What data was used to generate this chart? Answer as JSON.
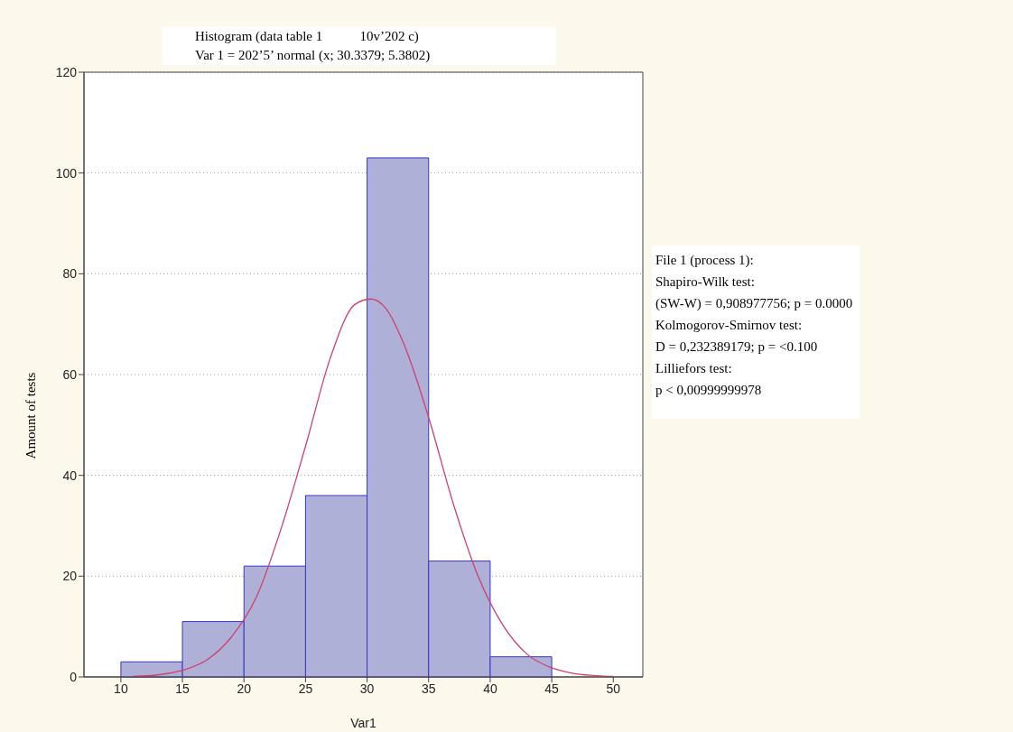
{
  "chart_data": {
    "type": "histogram",
    "title": "Histogram (data table 1           10v’202 c)",
    "subtitle": "Var 1 = 202’5’ normal (x; 30.3379; 5.3802)",
    "xlabel": "Var1",
    "ylabel": "Amount of tests",
    "bins": [
      10,
      15,
      20,
      25,
      30,
      35,
      40,
      45
    ],
    "values": [
      3,
      11,
      22,
      36,
      103,
      23,
      4
    ],
    "color": "#aeb0d8",
    "series": [
      {
        "type": "line",
        "color": "#d0406a",
        "x": [
          11,
          13,
          15,
          17,
          19,
          21,
          23,
          25,
          27,
          29,
          30.3,
          31.5,
          33,
          35,
          37,
          39,
          41,
          43,
          45,
          47,
          49,
          50
        ],
        "values": [
          0.1,
          0.4,
          1.3,
          3.4,
          8,
          15.8,
          29.3,
          45.8,
          63.2,
          73.9,
          75,
          73.2,
          66,
          51.5,
          34.4,
          20.1,
          10.4,
          4.5,
          1.8,
          0.6,
          0.2,
          0.1
        ]
      }
    ],
    "xlim": [
      7,
      52.4
    ],
    "xticks": [
      10,
      15,
      20,
      25,
      30,
      35,
      40,
      45,
      50
    ],
    "ylim": [
      0,
      120
    ],
    "yticks": [
      0,
      20,
      40,
      60,
      80,
      100,
      120
    ],
    "grid": "y",
    "annotations": [
      "File 1 (process 1):",
      "Shapiro-Wilk test:",
      "(SW-W) = 0,908977756; p = 0.0000",
      "Kolmogorov-Smirnov test:",
      "D = 0,232389179; p = <0.100",
      "Lilliefors test:",
      "p < 0,00999999978"
    ]
  }
}
